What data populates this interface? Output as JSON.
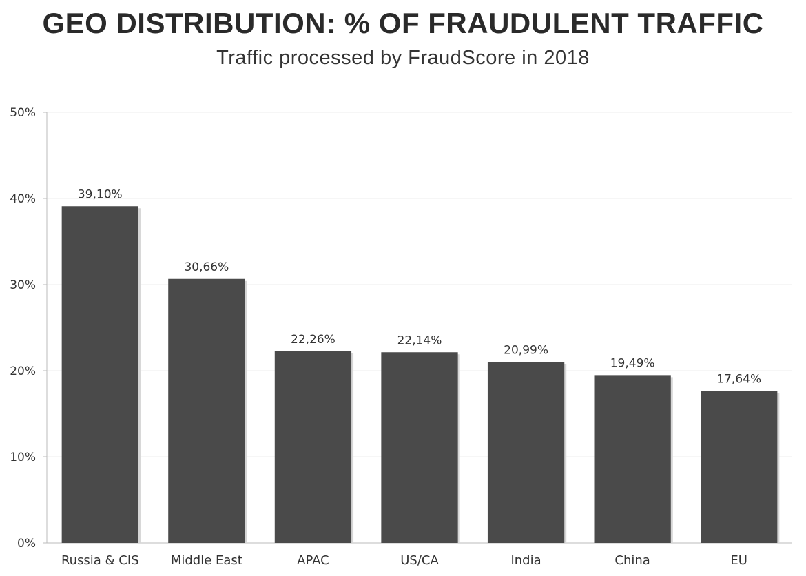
{
  "chart_data": {
    "type": "bar",
    "title": "GEO DISTRIBUTION: % OF FRAUDULENT TRAFFIC",
    "subtitle": "Traffic processed by FraudScore in 2018",
    "categories": [
      "Russia & CIS",
      "Middle East",
      "APAC",
      "US/CA",
      "India",
      "China",
      "EU"
    ],
    "values": [
      39.1,
      30.66,
      22.26,
      22.14,
      20.99,
      19.49,
      17.64
    ],
    "data_labels": [
      "39,10%",
      "30,66%",
      "22,26%",
      "22,14%",
      "20,99%",
      "19,49%",
      "17,64%"
    ],
    "y_ticks": [
      0,
      10,
      20,
      30,
      40,
      50
    ],
    "y_tick_labels": [
      "0%",
      "10%",
      "20%",
      "30%",
      "40%",
      "50%"
    ],
    "ylim": [
      0,
      50
    ],
    "xlabel": "",
    "ylabel": "",
    "grid": true,
    "bar_color": "#4a4a4a"
  }
}
